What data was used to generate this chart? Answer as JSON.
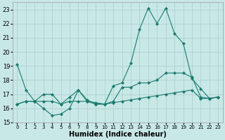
{
  "xlabel": "Humidex (Indice chaleur)",
  "bg_color": "#c8e8e6",
  "line_color": "#1a7a6e",
  "grid_color": "#a8ceca",
  "xlim": [
    -0.5,
    23.5
  ],
  "ylim": [
    15.0,
    23.5
  ],
  "yticks": [
    15,
    16,
    17,
    18,
    19,
    20,
    21,
    22,
    23
  ],
  "xticks": [
    0,
    1,
    2,
    3,
    4,
    5,
    6,
    7,
    8,
    9,
    10,
    11,
    12,
    13,
    14,
    15,
    16,
    17,
    18,
    19,
    20,
    21,
    22,
    23
  ],
  "line1_x": [
    0,
    1,
    2,
    3,
    4,
    5,
    6,
    7,
    8,
    9,
    10,
    11,
    12,
    13,
    14,
    15,
    16,
    17,
    18,
    19,
    20,
    21,
    22,
    23
  ],
  "line1_y": [
    19.1,
    17.3,
    16.5,
    16.0,
    15.5,
    15.6,
    16.0,
    17.3,
    16.5,
    16.3,
    16.3,
    17.6,
    17.8,
    19.2,
    21.6,
    23.1,
    22.0,
    23.1,
    21.3,
    20.6,
    18.1,
    17.4,
    16.7,
    16.8
  ],
  "line2_x": [
    0,
    1,
    2,
    3,
    4,
    5,
    6,
    7,
    8,
    9,
    10,
    11,
    12,
    13,
    14,
    15,
    16,
    17,
    18,
    19,
    20,
    21,
    22,
    23
  ],
  "line2_y": [
    16.3,
    16.5,
    16.5,
    17.0,
    17.0,
    16.3,
    16.8,
    17.3,
    16.6,
    16.3,
    16.3,
    16.5,
    17.5,
    17.5,
    17.8,
    17.8,
    18.0,
    18.5,
    18.5,
    18.5,
    18.2,
    16.8,
    16.7,
    16.8
  ],
  "line3_x": [
    0,
    1,
    2,
    3,
    4,
    5,
    6,
    7,
    8,
    9,
    10,
    11,
    12,
    13,
    14,
    15,
    16,
    17,
    18,
    19,
    20,
    21,
    22,
    23
  ],
  "line3_y": [
    16.3,
    16.5,
    16.5,
    16.5,
    16.5,
    16.3,
    16.5,
    16.5,
    16.5,
    16.4,
    16.3,
    16.4,
    16.5,
    16.6,
    16.7,
    16.8,
    16.9,
    17.0,
    17.1,
    17.2,
    17.3,
    16.7,
    16.7,
    16.8
  ]
}
